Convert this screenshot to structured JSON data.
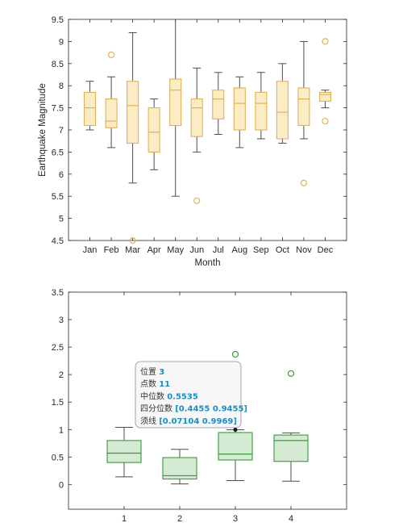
{
  "chart_data": [
    {
      "type": "box",
      "xlabel": "Month",
      "ylabel": "Earthquake Magnitude",
      "ylim": [
        4.5,
        9.5
      ],
      "yticks": [
        "4.5",
        "5",
        "5.5",
        "6",
        "6.5",
        "7",
        "7.5",
        "8",
        "8.5",
        "9",
        "9.5"
      ],
      "categories": [
        "Jan",
        "Feb",
        "Mar",
        "Apr",
        "May",
        "Jun",
        "Jul",
        "Aug",
        "Sep",
        "Oct",
        "Nov",
        "Dec"
      ],
      "boxes": [
        {
          "whisker_low": 7.0,
          "q1": 7.1,
          "median": 7.5,
          "q3": 7.85,
          "whisker_high": 8.1,
          "outliers": []
        },
        {
          "whisker_low": 6.6,
          "q1": 7.05,
          "median": 7.2,
          "q3": 7.7,
          "whisker_high": 8.2,
          "outliers": [
            8.7
          ]
        },
        {
          "whisker_low": 5.8,
          "q1": 6.7,
          "median": 7.55,
          "q3": 8.1,
          "whisker_high": 9.2,
          "outliers": [
            4.5
          ]
        },
        {
          "whisker_low": 6.1,
          "q1": 6.5,
          "median": 6.95,
          "q3": 7.5,
          "whisker_high": 7.7,
          "outliers": []
        },
        {
          "whisker_low": 5.5,
          "q1": 7.1,
          "median": 7.9,
          "q3": 8.15,
          "whisker_high": 9.5,
          "outliers": []
        },
        {
          "whisker_low": 6.5,
          "q1": 6.85,
          "median": 7.5,
          "q3": 7.7,
          "whisker_high": 8.4,
          "outliers": [
            5.4
          ]
        },
        {
          "whisker_low": 6.9,
          "q1": 7.25,
          "median": 7.7,
          "q3": 7.9,
          "whisker_high": 8.3,
          "outliers": []
        },
        {
          "whisker_low": 6.6,
          "q1": 7.0,
          "median": 7.6,
          "q3": 7.95,
          "whisker_high": 8.2,
          "outliers": []
        },
        {
          "whisker_low": 6.8,
          "q1": 7.0,
          "median": 7.6,
          "q3": 7.85,
          "whisker_high": 8.3,
          "outliers": []
        },
        {
          "whisker_low": 6.7,
          "q1": 6.8,
          "median": 7.4,
          "q3": 8.1,
          "whisker_high": 8.5,
          "outliers": []
        },
        {
          "whisker_low": 6.8,
          "q1": 7.1,
          "median": 7.7,
          "q3": 7.95,
          "whisker_high": 9.0,
          "outliers": [
            5.8
          ]
        },
        {
          "whisker_low": 7.5,
          "q1": 7.65,
          "median": 7.8,
          "q3": 7.85,
          "whisker_high": 7.9,
          "outliers": [
            9.0,
            7.2
          ]
        }
      ],
      "colors": {
        "box_fill": "#fbecc4",
        "box_edge": "#e0b25c",
        "median": "#e0b25c",
        "whisker": "#4d4d4d",
        "outlier": "#e0b25c"
      }
    },
    {
      "type": "box",
      "xlabel": "",
      "ylabel": "",
      "ylim": [
        -0.45,
        3.5
      ],
      "yticks": [
        "0",
        "0.5",
        "1",
        "1.5",
        "2",
        "2.5",
        "3",
        "3.5"
      ],
      "categories": [
        "1",
        "2",
        "3",
        "4"
      ],
      "boxes": [
        {
          "whisker_low": 0.14,
          "q1": 0.4,
          "median": 0.57,
          "q3": 0.8,
          "whisker_high": 1.04,
          "outliers": []
        },
        {
          "whisker_low": 0.01,
          "q1": 0.1,
          "median": 0.16,
          "q3": 0.49,
          "whisker_high": 0.64,
          "outliers": []
        },
        {
          "whisker_low": 0.07104,
          "q1": 0.4455,
          "median": 0.5535,
          "q3": 0.9455,
          "whisker_high": 0.9969,
          "outliers": [
            2.37
          ]
        },
        {
          "whisker_low": 0.06,
          "q1": 0.42,
          "median": 0.8,
          "q3": 0.9,
          "whisker_high": 0.94,
          "outliers": [
            2.02
          ]
        }
      ],
      "colors": {
        "box_fill": "#d4ead3",
        "box_edge": "#3a9a3a",
        "median": "#3a9a3a",
        "whisker": "#4d4d4d",
        "outlier": "#3a9a3a"
      },
      "datatip": {
        "lines": [
          {
            "label": "位置",
            "value": "3"
          },
          {
            "label": "点数",
            "value": "11"
          },
          {
            "label": "中位数",
            "value": "0.5535"
          },
          {
            "label": "四分位数",
            "value": "[0.4455 0.9455]"
          },
          {
            "label": "须线",
            "value": "[0.07104 0.9969]"
          }
        ],
        "anchor_category": "3",
        "anchor_value": 0.9969,
        "label_color": "#333333",
        "value_color": "#1a8fc0"
      }
    }
  ]
}
